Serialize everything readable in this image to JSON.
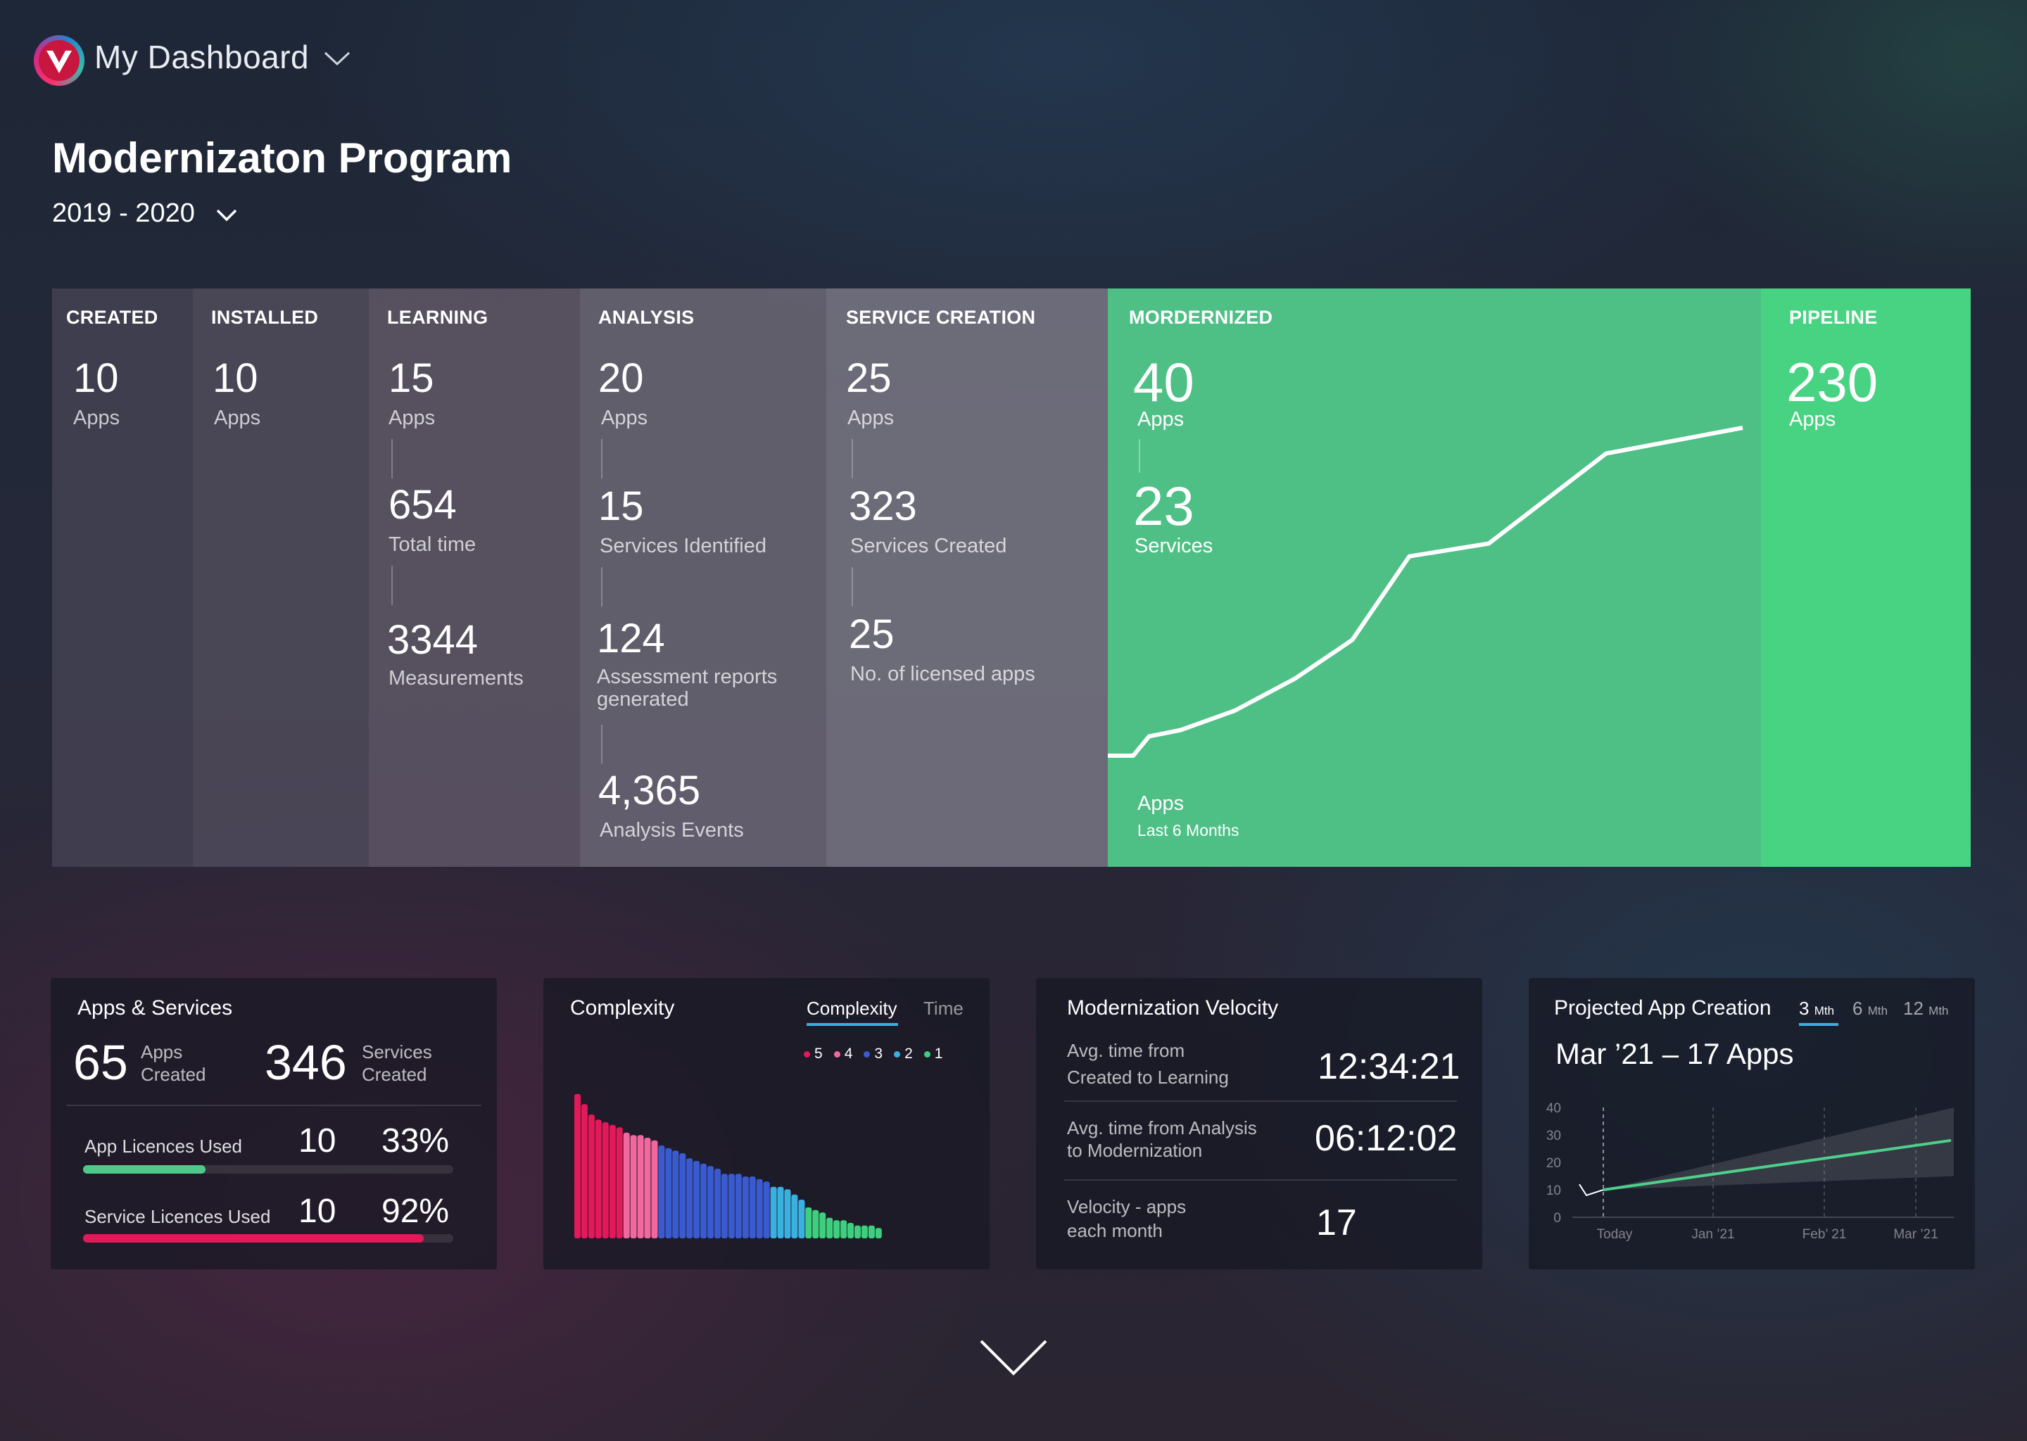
{
  "header": {
    "app_title": "My Dashboard",
    "program_title": "Modernizaton Program",
    "year_range": "2019 - 2020"
  },
  "pipeline": {
    "created": {
      "title": "CREATED",
      "value": "10",
      "unit": "Apps"
    },
    "installed": {
      "title": "INSTALLED",
      "value": "10",
      "unit": "Apps"
    },
    "learning": {
      "title": "LEARNING",
      "metrics": [
        {
          "value": "15",
          "label": "Apps"
        },
        {
          "value": "654",
          "label": "Total time"
        },
        {
          "value": "3344",
          "label": "Measurements"
        }
      ]
    },
    "analysis": {
      "title": "ANALYSIS",
      "metrics": [
        {
          "value": "20",
          "label": "Apps"
        },
        {
          "value": "15",
          "label": "Services Identified"
        },
        {
          "value": "124",
          "label": "Assessment reports generated"
        },
        {
          "value": "4,365",
          "label": "Analysis Events"
        }
      ]
    },
    "service_creation": {
      "title": "SERVICE CREATION",
      "metrics": [
        {
          "value": "25",
          "label": "Apps"
        },
        {
          "value": "323",
          "label": "Services Created"
        },
        {
          "value": "25",
          "label": "No. of licensed apps"
        }
      ]
    },
    "modernized": {
      "title": "MORDERNIZED",
      "apps_value": "40",
      "apps_label": "Apps",
      "services_value": "23",
      "services_label": "Services",
      "chart_label": "Apps",
      "chart_sublabel": "Last 6 Months",
      "trend": [
        0,
        0,
        3,
        4,
        7,
        12,
        18,
        31,
        33,
        47,
        51
      ]
    },
    "pipeline": {
      "title": "PIPELINE",
      "value": "230",
      "unit": "Apps"
    }
  },
  "apps_services": {
    "title": "Apps & Services",
    "apps_value": "65",
    "apps_label_1": "Apps",
    "apps_label_2": "Created",
    "services_value": "346",
    "services_label_1": "Services",
    "services_label_2": "Created",
    "app_licences": {
      "label": "App Licences Used",
      "count": "10",
      "percent": "33%",
      "fraction": 0.33,
      "color": "#4fc98a"
    },
    "service_licences": {
      "label": "Service Licences Used",
      "count": "10",
      "percent": "92%",
      "fraction": 0.92,
      "color": "#e3195a"
    }
  },
  "complexity": {
    "title": "Complexity",
    "tabs": [
      "Complexity",
      "Time"
    ],
    "active_tab": "Complexity",
    "legend": [
      {
        "label": "5",
        "color": "#e3195a"
      },
      {
        "label": "4",
        "color": "#f0689e"
      },
      {
        "label": "3",
        "color": "#3a5bd0"
      },
      {
        "label": "2",
        "color": "#3ab0e0"
      },
      {
        "label": "1",
        "color": "#3ecf7e"
      }
    ]
  },
  "velocity": {
    "title": "Modernization Velocity",
    "rows": [
      {
        "label_1": "Avg. time from",
        "label_2": "Created to Learning",
        "value": "12:34:21"
      },
      {
        "label_1": "Avg. time from Analysis",
        "label_2": "to Modernization",
        "value": "06:12:02"
      },
      {
        "label_1": "Velocity -  apps",
        "label_2": "each month",
        "value": "17"
      }
    ]
  },
  "projected": {
    "title": "Projected App Creation",
    "tabs": [
      {
        "num": "3",
        "unit": "Mth"
      },
      {
        "num": "6",
        "unit": "Mth"
      },
      {
        "num": "12",
        "unit": "Mth"
      }
    ],
    "active_tab": "3 Mth",
    "headline": "Mar ’21 –  17 Apps"
  },
  "chart_data": [
    {
      "type": "bar",
      "title": "Complexity",
      "series": [
        {
          "name": "5",
          "color": "#e3195a",
          "values": [
            56,
            52,
            48,
            46,
            45,
            44,
            43
          ]
        },
        {
          "name": "4",
          "color": "#f0689e",
          "values": [
            41,
            40,
            40,
            39,
            38
          ]
        },
        {
          "name": "3",
          "color": "#3a5bd0",
          "values": [
            36,
            35,
            34,
            33,
            31,
            30,
            29,
            28,
            27,
            25,
            25,
            25,
            24,
            24,
            23,
            22
          ]
        },
        {
          "name": "2",
          "color": "#3ab0e0",
          "values": [
            20,
            20,
            19,
            17,
            15
          ]
        },
        {
          "name": "1",
          "color": "#3ecf7e",
          "values": [
            12,
            11,
            10,
            8,
            7,
            7,
            6,
            5,
            5,
            5,
            4
          ]
        }
      ],
      "ylim": [
        0,
        60
      ]
    },
    {
      "type": "line",
      "title": "Projected App Creation",
      "x_ticks": [
        "Today",
        "Jan ’21",
        "Feb’ 21",
        "Mar ’21"
      ],
      "y_ticks": [
        "0",
        "10",
        "20",
        "30",
        "40"
      ],
      "ylim": [
        0,
        40
      ],
      "history": [
        12,
        8,
        10
      ],
      "projection": [
        10,
        28
      ],
      "band_upper": [
        10,
        40
      ],
      "band_lower": [
        10,
        15
      ]
    }
  ]
}
